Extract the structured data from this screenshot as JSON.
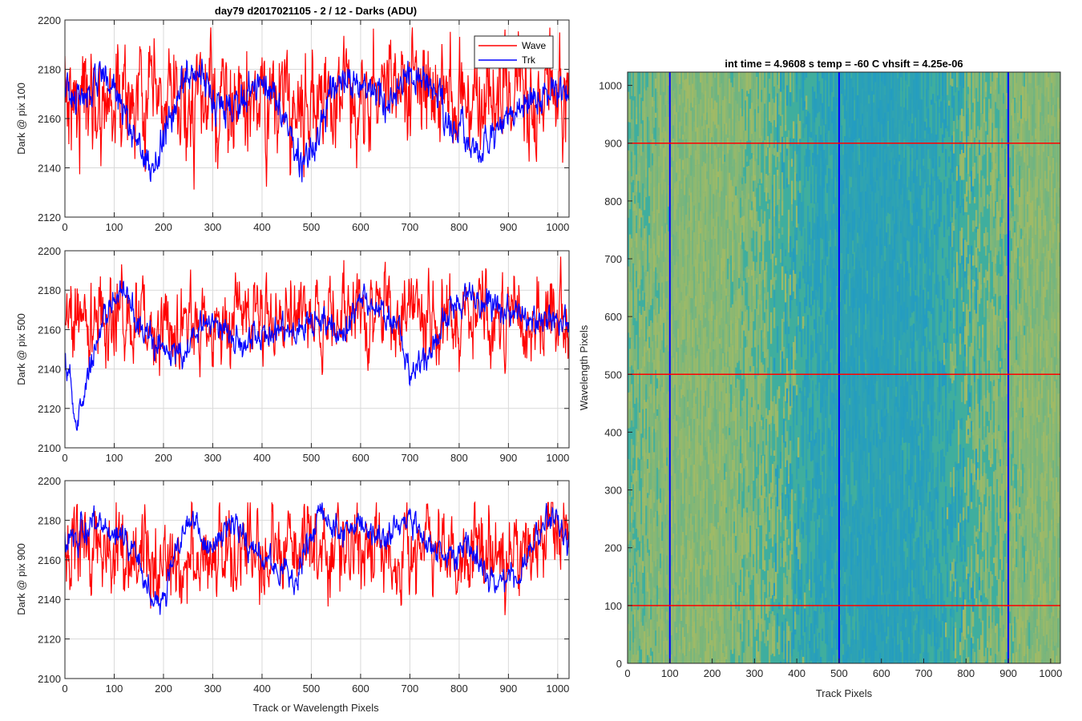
{
  "figure": {
    "title": "day79 d2017021105 - 2 / 12 - Darks (ADU)",
    "x_label": "Track or Wavelength Pixels"
  },
  "colors": {
    "wave": "#ff0000",
    "trk": "#0000ff",
    "grid": "#d9d9d9",
    "axes": "#262626",
    "image_base": "#3fae9e",
    "image_hi": "#b5bd5a",
    "image_lo": "#1e98c8"
  },
  "legend": {
    "entries": [
      "Wave",
      "Trk"
    ],
    "location": "top-right of first panel"
  },
  "chart_data": [
    {
      "type": "line",
      "ylabel": "Dark @ pix 100",
      "xlim": [
        0,
        1023
      ],
      "ylim": [
        2120,
        2200
      ],
      "xticks": [
        0,
        100,
        200,
        300,
        400,
        500,
        600,
        700,
        800,
        900,
        1000
      ],
      "yticks": [
        2120,
        2140,
        2160,
        2180,
        2200
      ],
      "grid": true,
      "series": [
        {
          "name": "Wave",
          "color": "#ff0000",
          "mean": 2167,
          "noise": 10.5,
          "min": 2126,
          "max": 2197,
          "trend": [
            [
              0,
              2170
            ],
            [
              100,
              2168
            ],
            [
              200,
              2164
            ],
            [
              300,
              2165
            ],
            [
              400,
              2165
            ],
            [
              500,
              2167
            ],
            [
              600,
              2172
            ],
            [
              700,
              2172
            ],
            [
              800,
              2168
            ],
            [
              900,
              2168
            ],
            [
              1023,
              2170
            ]
          ]
        },
        {
          "name": "Trk",
          "color": "#0000ff",
          "mean": 2163,
          "noise": 3.5,
          "min": 2128,
          "max": 2193,
          "trend": [
            [
              0,
              2172
            ],
            [
              40,
              2168
            ],
            [
              80,
              2180
            ],
            [
              110,
              2170
            ],
            [
              150,
              2148
            ],
            [
              180,
              2140
            ],
            [
              210,
              2158
            ],
            [
              250,
              2180
            ],
            [
              290,
              2172
            ],
            [
              340,
              2165
            ],
            [
              400,
              2175
            ],
            [
              450,
              2162
            ],
            [
              480,
              2140
            ],
            [
              510,
              2150
            ],
            [
              540,
              2172
            ],
            [
              580,
              2176
            ],
            [
              620,
              2172
            ],
            [
              660,
              2166
            ],
            [
              700,
              2178
            ],
            [
              740,
              2175
            ],
            [
              780,
              2160
            ],
            [
              820,
              2152
            ],
            [
              850,
              2148
            ],
            [
              900,
              2160
            ],
            [
              950,
              2168
            ],
            [
              1023,
              2172
            ]
          ]
        }
      ]
    },
    {
      "type": "line",
      "ylabel": "Dark @ pix 500",
      "xlim": [
        0,
        1023
      ],
      "ylim": [
        2100,
        2200
      ],
      "xticks": [
        0,
        100,
        200,
        300,
        400,
        500,
        600,
        700,
        800,
        900,
        1000
      ],
      "yticks": [
        2100,
        2120,
        2140,
        2160,
        2180,
        2200
      ],
      "grid": true,
      "series": [
        {
          "name": "Wave",
          "color": "#ff0000",
          "mean": 2165,
          "noise": 10,
          "min": 2126,
          "max": 2197,
          "trend": [
            [
              0,
              2166
            ],
            [
              200,
              2163
            ],
            [
              400,
              2164
            ],
            [
              600,
              2167
            ],
            [
              800,
              2168
            ],
            [
              1023,
              2166
            ]
          ]
        },
        {
          "name": "Trk",
          "color": "#0000ff",
          "mean": 2160,
          "noise": 3.5,
          "min": 2109,
          "max": 2196,
          "trend": [
            [
              0,
              2145
            ],
            [
              10,
              2135
            ],
            [
              25,
              2115
            ],
            [
              45,
              2135
            ],
            [
              80,
              2168
            ],
            [
              120,
              2182
            ],
            [
              160,
              2160
            ],
            [
              200,
              2150
            ],
            [
              240,
              2148
            ],
            [
              280,
              2162
            ],
            [
              320,
              2162
            ],
            [
              360,
              2150
            ],
            [
              400,
              2160
            ],
            [
              460,
              2158
            ],
            [
              520,
              2166
            ],
            [
              560,
              2160
            ],
            [
              600,
              2175
            ],
            [
              640,
              2172
            ],
            [
              680,
              2160
            ],
            [
              700,
              2138
            ],
            [
              740,
              2148
            ],
            [
              780,
              2168
            ],
            [
              820,
              2178
            ],
            [
              860,
              2172
            ],
            [
              900,
              2168
            ],
            [
              960,
              2165
            ],
            [
              1023,
              2162
            ]
          ]
        }
      ]
    },
    {
      "type": "line",
      "ylabel": "Dark @ pix 900",
      "xlim": [
        0,
        1023
      ],
      "ylim": [
        2100,
        2200
      ],
      "xticks": [
        0,
        100,
        200,
        300,
        400,
        500,
        600,
        700,
        800,
        900,
        1000
      ],
      "yticks": [
        2100,
        2120,
        2140,
        2160,
        2180,
        2200
      ],
      "grid": true,
      "series": [
        {
          "name": "Wave",
          "color": "#ff0000",
          "mean": 2164,
          "noise": 10.5,
          "min": 2118,
          "max": 2189,
          "trend": [
            [
              0,
              2168
            ],
            [
              100,
              2164
            ],
            [
              200,
              2158
            ],
            [
              300,
              2160
            ],
            [
              400,
              2162
            ],
            [
              500,
              2166
            ],
            [
              600,
              2166
            ],
            [
              700,
              2166
            ],
            [
              800,
              2164
            ],
            [
              900,
              2166
            ],
            [
              1023,
              2168
            ]
          ]
        },
        {
          "name": "Trk",
          "color": "#0000ff",
          "mean": 2168,
          "noise": 3.5,
          "min": 2125,
          "max": 2194,
          "trend": [
            [
              0,
              2168
            ],
            [
              60,
              2178
            ],
            [
              120,
              2170
            ],
            [
              160,
              2152
            ],
            [
              190,
              2135
            ],
            [
              220,
              2160
            ],
            [
              260,
              2182
            ],
            [
              300,
              2165
            ],
            [
              340,
              2178
            ],
            [
              380,
              2165
            ],
            [
              420,
              2158
            ],
            [
              470,
              2150
            ],
            [
              520,
              2185
            ],
            [
              560,
              2172
            ],
            [
              600,
              2178
            ],
            [
              640,
              2170
            ],
            [
              700,
              2182
            ],
            [
              740,
              2168
            ],
            [
              780,
              2160
            ],
            [
              820,
              2168
            ],
            [
              860,
              2150
            ],
            [
              900,
              2148
            ],
            [
              940,
              2160
            ],
            [
              980,
              2182
            ],
            [
              1023,
              2172
            ]
          ]
        }
      ]
    },
    {
      "type": "heatmap",
      "title": "int time = 4.9608 s    temp = -60 C    vhsift = 4.25e-06",
      "xlabel": "Track Pixels",
      "ylabel": "Wavelength Pixels",
      "xlim": [
        0,
        1023
      ],
      "ylim": [
        0,
        1023
      ],
      "xticks": [
        0,
        100,
        200,
        300,
        400,
        500,
        600,
        700,
        800,
        900,
        1000
      ],
      "yticks": [
        0,
        100,
        200,
        300,
        400,
        500,
        600,
        700,
        800,
        900,
        1000
      ],
      "markers": {
        "vertical_lines": {
          "color": "#0000ff",
          "x": [
            100,
            500,
            900
          ]
        },
        "horizontal_lines": {
          "color": "#ff0000",
          "y": [
            100,
            500,
            900
          ]
        }
      }
    }
  ]
}
